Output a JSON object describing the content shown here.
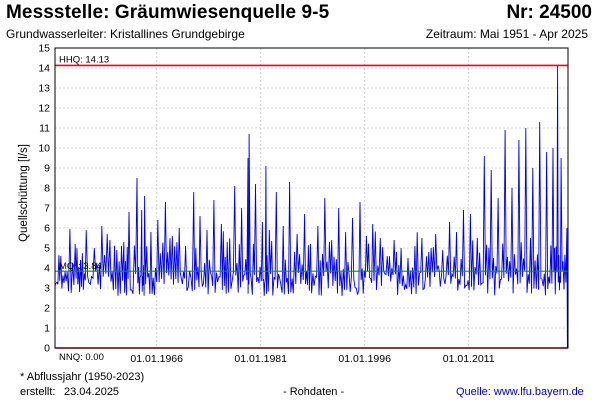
{
  "header": {
    "title": "Messstelle: Gräumwiesenquelle 9-5",
    "number": "Nr: 24500",
    "aquifer": "Grundwasserleiter: Kristallines Grundgebirge",
    "period": "Zeitraum: Mai 1951 - Apr 2025"
  },
  "footer": {
    "note": "* Abflussjahr (1950-2023)",
    "created_label": "erstellt:",
    "created_date": "23.04.2025",
    "center": "- Rohdaten -",
    "source_label": "Quelle:",
    "source_url": "www.lfu.bayern.de"
  },
  "colors": {
    "series": "#0000ee",
    "limit_lines": "#ff0000",
    "mean_line": "#009900",
    "grid": "#c8c8c8"
  },
  "chart_data": {
    "type": "line",
    "title": "",
    "xlabel": "",
    "ylabel": "Quellschüttung [l/s]",
    "ylim": [
      0,
      15
    ],
    "yticks": [
      0,
      1,
      2,
      3,
      4,
      5,
      6,
      7,
      8,
      9,
      10,
      11,
      12,
      13,
      14,
      15
    ],
    "xlim": [
      "1951-05-01",
      "2025-04-30"
    ],
    "xticks": [
      "01.01.1966",
      "01.01.1981",
      "01.01.1996",
      "01.01.2011"
    ],
    "grid": true,
    "reference_lines": [
      {
        "label": "HHQ: 14.13",
        "value": 14.13,
        "color": "#ff0000"
      },
      {
        "label": "MQ*: 3.84",
        "value": 3.84,
        "color": "#009900"
      },
      {
        "label": "NNQ: 0.00",
        "value": 0.0,
        "color": "#ff0000"
      }
    ],
    "series": [
      {
        "x": [
          "1951-05",
          "1952-03",
          "1953-02",
          "1954-04",
          "1955-01",
          "1955-11",
          "1957-01",
          "1958-02",
          "1959-04",
          "1960-04",
          "1961-04",
          "1962-01",
          "1963-03",
          "1963-11",
          "1964-04",
          "1965-03",
          "1966-03",
          "1967-04",
          "1968-04",
          "1969-04",
          "1970-03",
          "1971-05",
          "1972-04",
          "1973-04",
          "1974-04",
          "1975-05",
          "1976-03",
          "1977-04",
          "1978-04",
          "1979-03",
          "1979-05",
          "1980-04",
          "1981-04",
          "1981-10",
          "1982-04",
          "1983-04",
          "1984-04",
          "1985-03",
          "1986-04",
          "1987-05",
          "1988-03",
          "1989-04",
          "1990-04",
          "1991-04",
          "1992-04",
          "1993-04",
          "1994-04",
          "1995-05",
          "1996-04",
          "1997-03",
          "1998-04",
          "1999-04",
          "2000-04",
          "2001-04",
          "2002-04",
          "2003-04",
          "2004-04",
          "2005-04",
          "2006-04",
          "2007-04",
          "2008-04",
          "2009-04",
          "2010-04",
          "2011-04",
          "2012-04",
          "2013-04",
          "2014-04",
          "2015-04",
          "2016-04",
          "2017-04",
          "2018-04",
          "2019-04",
          "2020-04",
          "2021-04",
          "2022-04",
          "2023-03",
          "2023-11",
          "2024-05",
          "2025-03",
          "2025-04"
        ],
        "y": [
          3.1,
          4.6,
          3.8,
          5.2,
          4.4,
          5.9,
          5.0,
          6.1,
          5.4,
          4.9,
          5.3,
          6.8,
          8.5,
          6.9,
          7.6,
          5.8,
          6.4,
          7.3,
          5.6,
          6.0,
          5.1,
          7.8,
          6.6,
          5.9,
          7.4,
          6.2,
          5.3,
          8.1,
          7.0,
          9.5,
          10.7,
          8.2,
          6.3,
          9.1,
          5.9,
          7.8,
          6.1,
          8.3,
          5.7,
          6.7,
          5.2,
          6.1,
          7.5,
          5.4,
          7.0,
          5.8,
          6.5,
          7.3,
          5.6,
          6.2,
          5.5,
          4.6,
          5.4,
          5.0,
          4.5,
          5.1,
          5.5,
          4.8,
          5.7,
          4.9,
          6.3,
          5.8,
          6.9,
          6.7,
          5.5,
          9.6,
          8.9,
          7.5,
          10.9,
          8.0,
          10.4,
          11.0,
          9.0,
          11.3,
          9.8,
          10.0,
          14.13,
          9.5,
          6.0,
          0.0
        ]
      }
    ]
  }
}
